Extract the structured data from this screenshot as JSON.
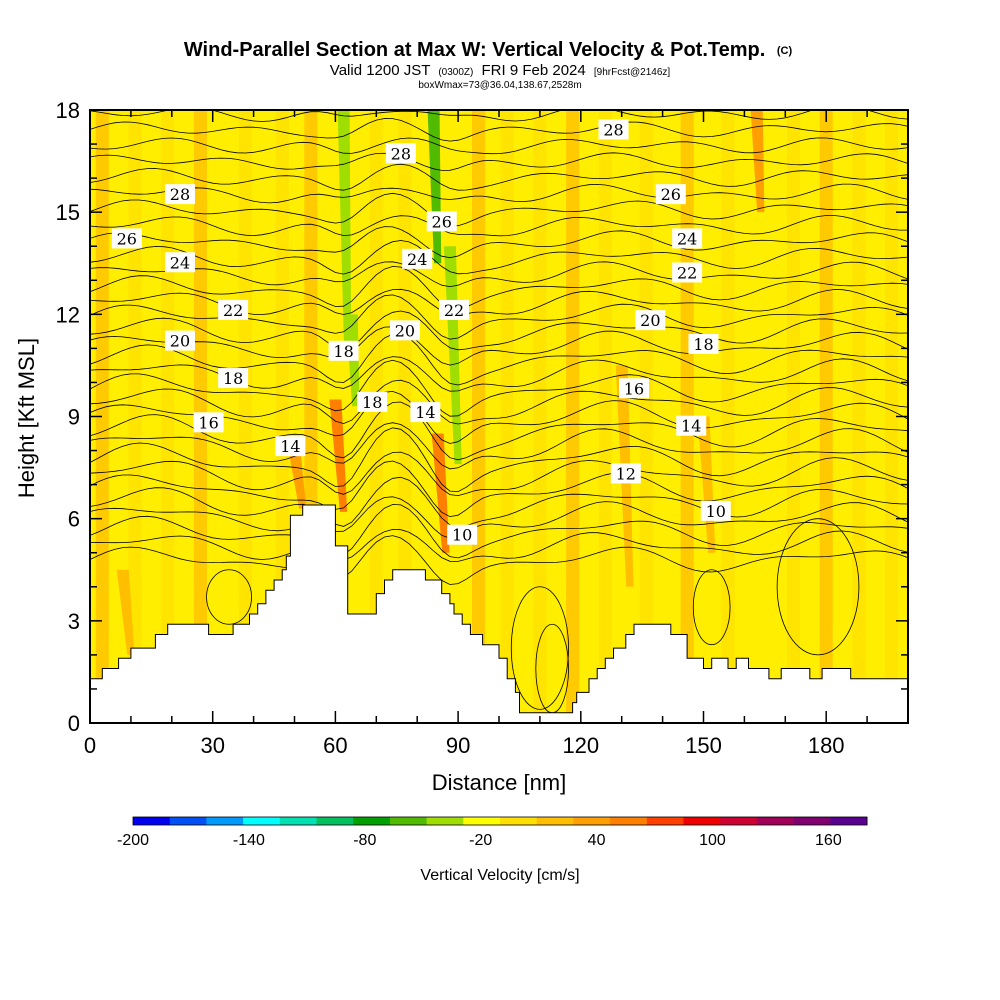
{
  "chart_data": {
    "type": "heatmap",
    "title": "Wind-Parallel Section at Max W: Vertical Velocity & Pot.Temp.",
    "title_suffix": "(C)",
    "subtitle_parts": [
      "Valid 1200 JST",
      "(0300Z)",
      "FRI 9 Feb 2024",
      "[9hrFcst@2146z]"
    ],
    "subtitle_line2": "boxWmax=73@36.04,138.67,2528m",
    "xlabel": "Distance [nm]",
    "ylabel": "Height [Kft MSL]",
    "xlim": [
      0,
      200
    ],
    "ylim": [
      0,
      18
    ],
    "x_ticks": [
      0,
      30,
      60,
      90,
      120,
      150,
      180
    ],
    "y_ticks": [
      0,
      3,
      6,
      9,
      12,
      15,
      18
    ],
    "colorbar": {
      "label": "Vertical Velocity [cm/s]",
      "range": [
        -200,
        180
      ],
      "step": 20,
      "tick_labels": [
        -200,
        -140,
        -80,
        -20,
        40,
        100,
        160
      ],
      "colors": [
        "#0000ee",
        "#0050f5",
        "#009aff",
        "#00ffff",
        "#00e0b0",
        "#00c060",
        "#00a000",
        "#50bb00",
        "#a0dd00",
        "#ffff00",
        "#ffe000",
        "#ffbf00",
        "#ff9f00",
        "#ff7f00",
        "#ff4000",
        "#ee0000",
        "#cc0033",
        "#a0005a",
        "#800070",
        "#5a0090"
      ]
    },
    "terrain": [
      [
        0,
        1.3
      ],
      [
        3,
        1.3
      ],
      [
        3,
        1.6
      ],
      [
        7,
        1.6
      ],
      [
        7,
        1.9
      ],
      [
        10,
        1.9
      ],
      [
        10,
        2.2
      ],
      [
        16,
        2.2
      ],
      [
        16,
        2.6
      ],
      [
        19,
        2.6
      ],
      [
        19,
        2.9
      ],
      [
        29,
        2.9
      ],
      [
        29,
        2.6
      ],
      [
        35,
        2.6
      ],
      [
        35,
        2.9
      ],
      [
        39,
        2.9
      ],
      [
        39,
        3.2
      ],
      [
        41,
        3.2
      ],
      [
        41,
        3.5
      ],
      [
        43,
        3.5
      ],
      [
        43,
        3.9
      ],
      [
        45,
        3.9
      ],
      [
        45,
        4.2
      ],
      [
        47,
        4.2
      ],
      [
        47,
        4.5
      ],
      [
        48,
        4.5
      ],
      [
        48,
        4.9
      ],
      [
        49,
        4.9
      ],
      [
        49,
        6.1
      ],
      [
        52,
        6.1
      ],
      [
        52,
        6.4
      ],
      [
        60,
        6.4
      ],
      [
        60,
        5.2
      ],
      [
        63,
        5.2
      ],
      [
        63,
        3.2
      ],
      [
        70,
        3.2
      ],
      [
        70,
        3.8
      ],
      [
        72,
        3.8
      ],
      [
        72,
        4.2
      ],
      [
        74,
        4.2
      ],
      [
        74,
        4.5
      ],
      [
        82,
        4.5
      ],
      [
        82,
        4.2
      ],
      [
        86,
        4.2
      ],
      [
        86,
        3.8
      ],
      [
        88,
        3.8
      ],
      [
        88,
        3.5
      ],
      [
        89,
        3.5
      ],
      [
        89,
        3.2
      ],
      [
        91,
        3.2
      ],
      [
        91,
        2.9
      ],
      [
        93,
        2.9
      ],
      [
        93,
        2.6
      ],
      [
        96,
        2.6
      ],
      [
        96,
        2.3
      ],
      [
        100,
        2.3
      ],
      [
        100,
        1.9
      ],
      [
        102,
        1.9
      ],
      [
        102,
        1.3
      ],
      [
        104,
        1.3
      ],
      [
        104,
        0.9
      ],
      [
        105,
        0.9
      ],
      [
        105,
        0.3
      ],
      [
        118,
        0.3
      ],
      [
        118,
        0.6
      ],
      [
        119,
        0.6
      ],
      [
        119,
        0.9
      ],
      [
        122,
        0.9
      ],
      [
        122,
        1.3
      ],
      [
        124,
        1.3
      ],
      [
        124,
        1.6
      ],
      [
        126,
        1.6
      ],
      [
        126,
        1.9
      ],
      [
        128,
        1.9
      ],
      [
        128,
        2.2
      ],
      [
        131,
        2.2
      ],
      [
        131,
        2.6
      ],
      [
        133,
        2.6
      ],
      [
        133,
        2.9
      ],
      [
        142,
        2.9
      ],
      [
        142,
        2.6
      ],
      [
        146,
        2.6
      ],
      [
        146,
        1.9
      ],
      [
        150,
        1.9
      ],
      [
        150,
        1.6
      ],
      [
        152,
        1.6
      ],
      [
        152,
        1.9
      ],
      [
        156,
        1.9
      ],
      [
        156,
        1.6
      ],
      [
        158,
        1.6
      ],
      [
        158,
        1.9
      ],
      [
        161,
        1.9
      ],
      [
        161,
        1.6
      ],
      [
        166,
        1.6
      ],
      [
        166,
        1.3
      ],
      [
        169,
        1.3
      ],
      [
        169,
        1.6
      ],
      [
        176,
        1.6
      ],
      [
        176,
        1.3
      ],
      [
        179,
        1.3
      ],
      [
        179,
        1.6
      ],
      [
        186,
        1.6
      ],
      [
        186,
        1.3
      ],
      [
        200,
        1.3
      ]
    ],
    "wv_features": [
      {
        "x": 62,
        "ytop": 18,
        "ybot": 11,
        "w": -40
      },
      {
        "x": 64,
        "ytop": 12,
        "ybot": 9.3,
        "w": -30
      },
      {
        "x": 84,
        "ytop": 18,
        "ybot": 13.5,
        "w": -50
      },
      {
        "x": 88,
        "ytop": 14,
        "ybot": 7.6,
        "w": -30
      },
      {
        "x": 60,
        "ytop": 9.5,
        "ybot": 6.2,
        "w": 60
      },
      {
        "x": 85,
        "ytop": 8.5,
        "ybot": 5,
        "w": 70
      },
      {
        "x": 163,
        "ytop": 18,
        "ybot": 15,
        "w": 40
      },
      {
        "x": 50,
        "ytop": 8,
        "ybot": 6.3,
        "w": 40
      },
      {
        "x": 8,
        "ytop": 4.5,
        "ybot": 2,
        "w": 35
      },
      {
        "x": 130,
        "ytop": 10.5,
        "ybot": 4,
        "w": 25
      },
      {
        "x": 150,
        "ytop": 9,
        "ybot": 5,
        "w": 25
      }
    ],
    "contour_labels": [
      {
        "text": "28",
        "x": 22,
        "y": 15.5
      },
      {
        "text": "26",
        "x": 9,
        "y": 14.2
      },
      {
        "text": "24",
        "x": 22,
        "y": 13.5
      },
      {
        "text": "22",
        "x": 35,
        "y": 12.1
      },
      {
        "text": "20",
        "x": 22,
        "y": 11.2
      },
      {
        "text": "18",
        "x": 35,
        "y": 10.1
      },
      {
        "text": "16",
        "x": 29,
        "y": 8.8
      },
      {
        "text": "14",
        "x": 49,
        "y": 8.1
      },
      {
        "text": "18",
        "x": 62,
        "y": 10.9
      },
      {
        "text": "18",
        "x": 69,
        "y": 9.4
      },
      {
        "text": "28",
        "x": 76,
        "y": 16.7
      },
      {
        "text": "26",
        "x": 86,
        "y": 14.7
      },
      {
        "text": "24",
        "x": 80,
        "y": 13.6
      },
      {
        "text": "22",
        "x": 89,
        "y": 12.1
      },
      {
        "text": "20",
        "x": 77,
        "y": 11.5
      },
      {
        "text": "14",
        "x": 82,
        "y": 9.1
      },
      {
        "text": "10",
        "x": 91,
        "y": 5.5
      },
      {
        "text": "28",
        "x": 128,
        "y": 17.4
      },
      {
        "text": "26",
        "x": 142,
        "y": 15.5
      },
      {
        "text": "24",
        "x": 146,
        "y": 14.2
      },
      {
        "text": "22",
        "x": 146,
        "y": 13.2
      },
      {
        "text": "20",
        "x": 137,
        "y": 11.8
      },
      {
        "text": "18",
        "x": 150,
        "y": 11.1
      },
      {
        "text": "16",
        "x": 133,
        "y": 9.8
      },
      {
        "text": "14",
        "x": 147,
        "y": 8.7
      },
      {
        "text": "12",
        "x": 131,
        "y": 7.3
      },
      {
        "text": "10",
        "x": 153,
        "y": 6.2
      }
    ]
  }
}
